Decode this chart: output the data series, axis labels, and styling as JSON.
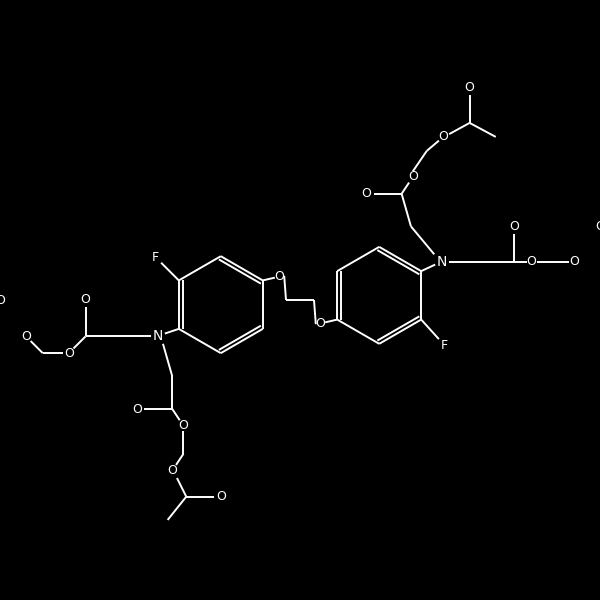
{
  "bg_color": "#000000",
  "fg_color": "#ffffff",
  "lw": 1.4,
  "figsize": [
    6.0,
    6.0
  ],
  "dpi": 100,
  "xlim": [
    0,
    600
  ],
  "ylim": [
    0,
    600
  ]
}
